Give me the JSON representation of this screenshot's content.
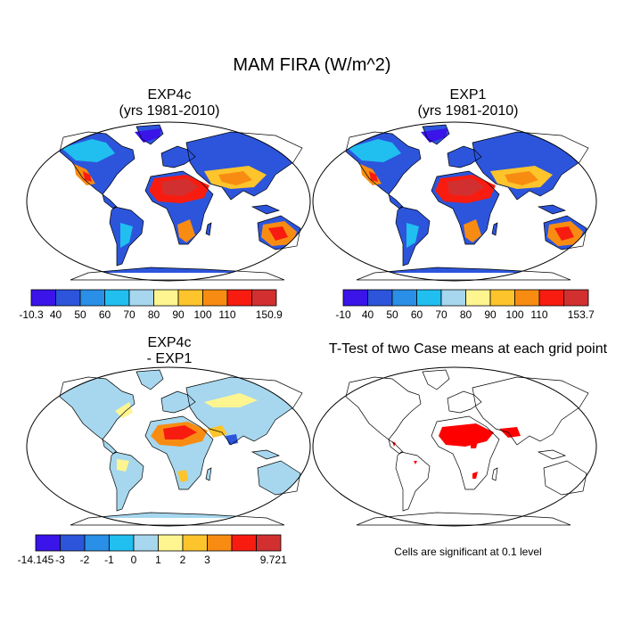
{
  "figure": {
    "title": "MAM FIRA (W/m^2)"
  },
  "panels": [
    {
      "id": "exp4c",
      "title_line1": "EXP4c",
      "title_line2": "(yrs 1981-2010)",
      "colorbar": {
        "labels": [
          "-10.3",
          "40",
          "50",
          "60",
          "70",
          "80",
          "90",
          "100",
          "110",
          "150.9"
        ]
      }
    },
    {
      "id": "exp1",
      "title_line1": "EXP1",
      "title_line2": "(yrs 1981-2010)",
      "colorbar": {
        "labels": [
          "-10",
          "40",
          "50",
          "60",
          "70",
          "80",
          "90",
          "100",
          "110",
          "153.7"
        ]
      }
    },
    {
      "id": "diff",
      "title_line1": "EXP4c",
      "title_line2": "- EXP1",
      "colorbar": {
        "labels": [
          "-14.145",
          "-3",
          "-2",
          "-1",
          "0",
          "1",
          "2",
          "3",
          "9.721"
        ]
      }
    },
    {
      "id": "ttest",
      "title_line1": "T-Test of two Case means at each grid point",
      "title_line2": "",
      "note": "Cells are significant at 0.1 level"
    }
  ],
  "colors": {
    "colorbar": [
      "#3a14e8",
      "#2c55dc",
      "#2a8fe6",
      "#20bff0",
      "#a6d7ee",
      "#fef591",
      "#fdc42c",
      "#f88c12",
      "#f81c10",
      "#d23030"
    ],
    "diff_colorbar": [
      "#3a14e8",
      "#2c55dc",
      "#2a8fe6",
      "#20bff0",
      "#a6d7ee",
      "#fef591",
      "#fdc42c",
      "#f88c12",
      "#f81c10",
      "#d23030"
    ],
    "significant": "#ff0000"
  }
}
